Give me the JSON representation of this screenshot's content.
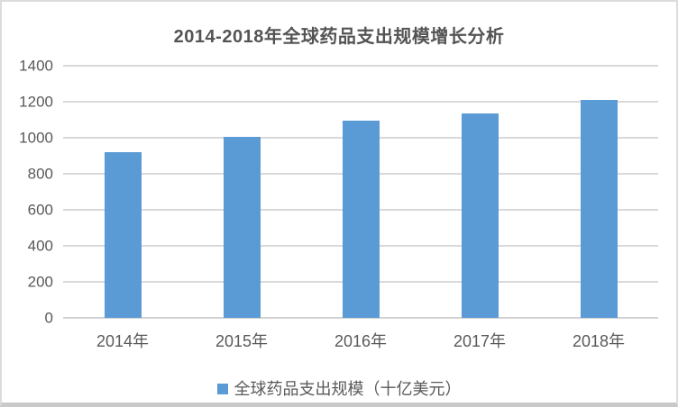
{
  "chart_data": {
    "type": "bar",
    "title": "2014-2018年全球药品支出规模增长分析",
    "categories": [
      "2014年",
      "2015年",
      "2016年",
      "2017年",
      "2018年"
    ],
    "values": [
      920,
      1005,
      1095,
      1135,
      1210
    ],
    "series_name": "全球药品支出规模（十亿美元）",
    "xlabel": "",
    "ylabel": "",
    "ylim": [
      0,
      1400
    ],
    "yticks": [
      0,
      200,
      400,
      600,
      800,
      1000,
      1200,
      1400
    ],
    "grid": true,
    "legend_position": "bottom",
    "colors": {
      "bar": "#5B9BD5",
      "gridline": "#d9d9d9",
      "axis_line": "#d3d3d3",
      "title_text": "#545454",
      "label_text": "#595959",
      "frame_border": "#dcdcdc"
    }
  }
}
